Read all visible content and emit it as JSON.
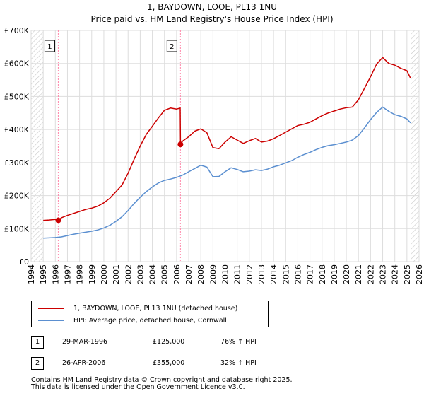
{
  "chart_data": {
    "type": "line",
    "title": "1, BAYDOWN, LOOE, PL13 1NU",
    "subtitle": "Price paid vs. HM Land Registry's House Price Index (HPI)",
    "xlabel": "",
    "ylabel": "",
    "xlim": [
      1994,
      2026
    ],
    "ylim": [
      0,
      700000
    ],
    "x_ticks": [
      "1994",
      "1995",
      "1996",
      "1997",
      "1998",
      "1999",
      "2000",
      "2001",
      "2002",
      "2003",
      "2004",
      "2005",
      "2006",
      "2007",
      "2008",
      "2009",
      "2010",
      "2011",
      "2012",
      "2013",
      "2014",
      "2015",
      "2016",
      "2017",
      "2018",
      "2019",
      "2020",
      "2021",
      "2022",
      "2023",
      "2024",
      "2025",
      "2026"
    ],
    "y_ticks": [
      {
        "value": 0,
        "label": "£0"
      },
      {
        "value": 100000,
        "label": "£100K"
      },
      {
        "value": 200000,
        "label": "£200K"
      },
      {
        "value": 300000,
        "label": "£300K"
      },
      {
        "value": 400000,
        "label": "£400K"
      },
      {
        "value": 500000,
        "label": "£500K"
      },
      {
        "value": 600000,
        "label": "£600K"
      },
      {
        "value": 700000,
        "label": "£700K"
      }
    ],
    "grid": true,
    "series": [
      {
        "name": "1, BAYDOWN, LOOE, PL13 1NU (detached house)",
        "color": "#cc0000",
        "x": [
          1995.0,
          1995.5,
          1996.0,
          1996.24,
          1996.5,
          1997.0,
          1997.5,
          1998.0,
          1998.5,
          1999.0,
          1999.5,
          2000.0,
          2000.5,
          2001.0,
          2001.5,
          2002.0,
          2002.5,
          2003.0,
          2003.5,
          2004.0,
          2004.5,
          2005.0,
          2005.5,
          2006.0,
          2006.3,
          2006.32,
          2006.5,
          2007.0,
          2007.5,
          2008.0,
          2008.5,
          2009.0,
          2009.5,
          2010.0,
          2010.5,
          2011.0,
          2011.5,
          2012.0,
          2012.5,
          2013.0,
          2013.5,
          2014.0,
          2014.5,
          2015.0,
          2015.5,
          2016.0,
          2016.5,
          2017.0,
          2017.5,
          2018.0,
          2018.5,
          2019.0,
          2019.5,
          2020.0,
          2020.5,
          2021.0,
          2021.5,
          2022.0,
          2022.5,
          2023.0,
          2023.5,
          2024.0,
          2024.5,
          2025.0,
          2025.3
        ],
        "values": [
          125000,
          126000,
          128000,
          125000,
          133000,
          140000,
          146000,
          152000,
          158000,
          162000,
          168000,
          178000,
          192000,
          212000,
          232000,
          268000,
          310000,
          350000,
          385000,
          410000,
          435000,
          458000,
          465000,
          462000,
          465000,
          355000,
          365000,
          378000,
          395000,
          402000,
          390000,
          345000,
          342000,
          362000,
          378000,
          368000,
          358000,
          366000,
          373000,
          362000,
          365000,
          372000,
          382000,
          392000,
          402000,
          412000,
          416000,
          422000,
          432000,
          442000,
          450000,
          456000,
          462000,
          466000,
          468000,
          490000,
          525000,
          560000,
          598000,
          618000,
          600000,
          595000,
          585000,
          578000,
          555000
        ]
      },
      {
        "name": "HPI: Average price, detached house, Cornwall",
        "color": "#5b8fd0",
        "x": [
          1995.0,
          1995.5,
          1996.0,
          1996.5,
          1997.0,
          1997.5,
          1998.0,
          1998.5,
          1999.0,
          1999.5,
          2000.0,
          2000.5,
          2001.0,
          2001.5,
          2002.0,
          2002.5,
          2003.0,
          2003.5,
          2004.0,
          2004.5,
          2005.0,
          2005.5,
          2006.0,
          2006.5,
          2007.0,
          2007.5,
          2008.0,
          2008.5,
          2009.0,
          2009.5,
          2010.0,
          2010.5,
          2011.0,
          2011.5,
          2012.0,
          2012.5,
          2013.0,
          2013.5,
          2014.0,
          2014.5,
          2015.0,
          2015.5,
          2016.0,
          2016.5,
          2017.0,
          2017.5,
          2018.0,
          2018.5,
          2019.0,
          2019.5,
          2020.0,
          2020.5,
          2021.0,
          2021.5,
          2022.0,
          2022.5,
          2023.0,
          2023.5,
          2024.0,
          2024.5,
          2025.0,
          2025.3
        ],
        "values": [
          71000,
          72000,
          73000,
          75000,
          79000,
          83000,
          86000,
          89000,
          92000,
          96000,
          102000,
          110000,
          122000,
          136000,
          155000,
          176000,
          195000,
          212000,
          226000,
          238000,
          246000,
          250000,
          255000,
          262000,
          272000,
          282000,
          292000,
          286000,
          257000,
          258000,
          272000,
          284000,
          279000,
          272000,
          274000,
          278000,
          276000,
          280000,
          287000,
          292000,
          299000,
          306000,
          316000,
          324000,
          331000,
          339000,
          346000,
          351000,
          354000,
          358000,
          362000,
          368000,
          382000,
          405000,
          430000,
          452000,
          468000,
          455000,
          445000,
          440000,
          432000,
          420000
        ]
      }
    ],
    "transactions": [
      {
        "id": "1",
        "date_label": "29-MAR-1996",
        "x": 1996.24,
        "price": 125000,
        "price_label": "£125,000",
        "hpi_label": "76% ↑ HPI"
      },
      {
        "id": "2",
        "date_label": "26-APR-2006",
        "x": 2006.32,
        "price": 355000,
        "price_label": "£355,000",
        "hpi_label": "32% ↑ HPI"
      }
    ],
    "marker_color": "#cc0000",
    "vline_color": "#ff88aa",
    "hatched_ranges": [
      [
        1994,
        1995
      ],
      [
        2025.3,
        2026
      ]
    ]
  },
  "legend": {
    "property_label": "1, BAYDOWN, LOOE, PL13 1NU (detached house)",
    "hpi_label": "HPI: Average price, detached house, Cornwall"
  },
  "footer": {
    "line1": "Contains HM Land Registry data © Crown copyright and database right 2025.",
    "line2": "This data is licensed under the Open Government Licence v3.0."
  }
}
